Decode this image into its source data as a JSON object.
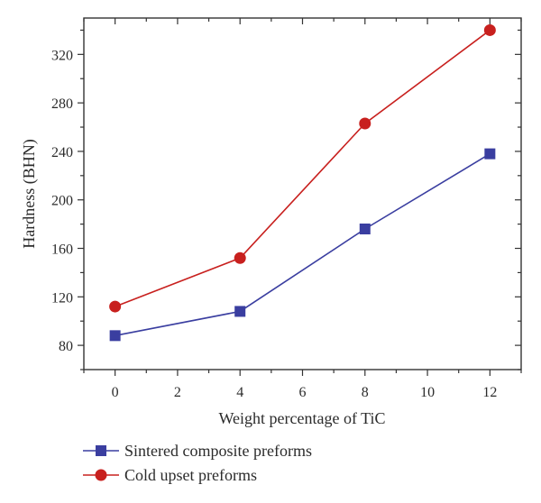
{
  "chart_data": {
    "type": "line",
    "title": "",
    "xlabel": "Weight percentage of TiC",
    "ylabel": "Hardness (BHN)",
    "xlim": [
      -1,
      13
    ],
    "ylim": [
      60,
      350
    ],
    "xticks": [
      0,
      2,
      4,
      6,
      8,
      10,
      12
    ],
    "yticks": [
      80,
      120,
      160,
      200,
      240,
      280,
      320
    ],
    "grid": false,
    "legend_position": "bottom",
    "series": [
      {
        "name": "Sintered composite preforms",
        "marker": "square",
        "color": "#3a3ea0",
        "x": [
          0,
          4,
          8,
          12
        ],
        "y": [
          88,
          108,
          176,
          238
        ]
      },
      {
        "name": "Cold upset preforms",
        "marker": "circle",
        "color": "#c8201e",
        "x": [
          0,
          4,
          8,
          12
        ],
        "y": [
          112,
          152,
          263,
          340
        ]
      }
    ]
  }
}
